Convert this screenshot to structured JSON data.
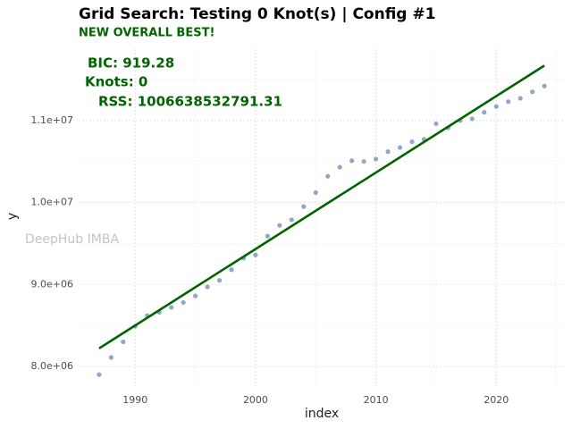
{
  "chart_data": {
    "type": "scatter",
    "title": "Grid Search: Testing 0 Knot(s) | Config #1",
    "subtitle": "NEW OVERALL BEST!",
    "annotations": [
      "BIC: 919.28",
      "Knots: 0",
      "RSS: 1006638532791.31"
    ],
    "watermark": "DeepHub IMBA",
    "xlabel": "index",
    "ylabel": "y",
    "xlim": [
      1985.3,
      2025.7
    ],
    "ylim": [
      7760000,
      11870000
    ],
    "xticks": [
      1990,
      2000,
      2010,
      2020
    ],
    "yticks": [
      {
        "value": 8000000,
        "label": "8.0e+06"
      },
      {
        "value": 9000000,
        "label": "9.0e+06"
      },
      {
        "value": 10000000,
        "label": "1.0e+07"
      },
      {
        "value": 11000000,
        "label": "1.1e+07"
      }
    ],
    "xminor": [
      1995,
      2005,
      2015,
      2025
    ],
    "yminor": [
      8500000,
      9500000,
      10500000,
      11500000
    ],
    "grid": true,
    "series": [
      {
        "color": "#8fa8c8",
        "x": [
          1987,
          1988,
          1989,
          1990,
          1991,
          1992,
          1993,
          1994,
          1995,
          1996,
          1997,
          1998,
          1999,
          2000,
          2001,
          2002,
          2003,
          2004,
          2005,
          2006,
          2007,
          2008,
          2009,
          2010,
          2011,
          2012,
          2013,
          2014,
          2015,
          2016,
          2017,
          2018,
          2019,
          2020,
          2021,
          2022,
          2023,
          2024
        ],
        "values": [
          7900000,
          8110000,
          8300000,
          8490000,
          8620000,
          8660000,
          8720000,
          8780000,
          8860000,
          8970000,
          9050000,
          9180000,
          9320000,
          9360000,
          9590000,
          9720000,
          9790000,
          9950000,
          10120000,
          10320000,
          10430000,
          10510000,
          10500000,
          10530000,
          10620000,
          10670000,
          10740000,
          10770000,
          10960000,
          10910000,
          11000000,
          11020000,
          11100000,
          11170000,
          11230000,
          11270000,
          11350000,
          11420000
        ]
      },
      {
        "color": "#006400",
        "x": [
          1987,
          2024
        ],
        "values": [
          8220000,
          11670000
        ]
      }
    ]
  }
}
